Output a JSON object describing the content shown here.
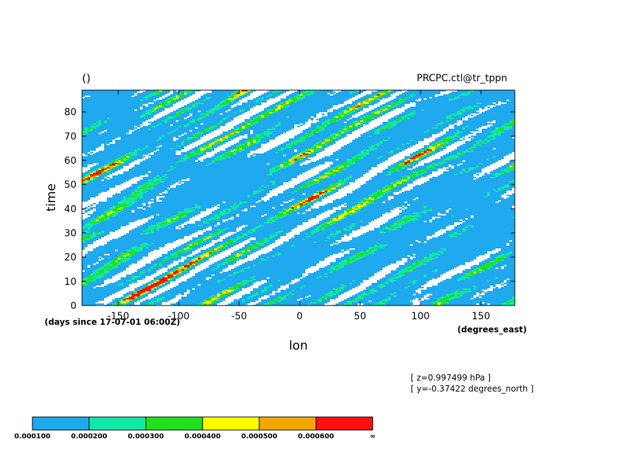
{
  "header": {
    "title_left": "()",
    "title_right": "PRCPC.ctl@tr_tppn"
  },
  "chart_data": {
    "type": "heatmap",
    "xlabel": "lon",
    "x_unit": "(degrees_east)",
    "ylabel": "time",
    "y_unit": "(days since 17-07-01 06:00Z)",
    "xlim": [
      -180,
      178
    ],
    "ylim": [
      0,
      89
    ],
    "x_ticks": [
      -150,
      -100,
      -50,
      0,
      50,
      100,
      150
    ],
    "y_ticks": [
      0,
      10,
      20,
      30,
      40,
      50,
      60,
      70,
      80
    ],
    "grid": false,
    "colorbar": {
      "levels": [
        "0.000100",
        "0.000200",
        "0.000300",
        "0.000400",
        "0.000500",
        "0.000600",
        "∞"
      ],
      "colors": [
        "#1fa9ee",
        "#10e8a8",
        "#21e01d",
        "#fefe00",
        "#f1a802",
        "#fe1010"
      ]
    },
    "info_lines": [
      "[ z=0.997499 hPa ]",
      "[ y=-0.37422 degrees_north ]"
    ]
  }
}
